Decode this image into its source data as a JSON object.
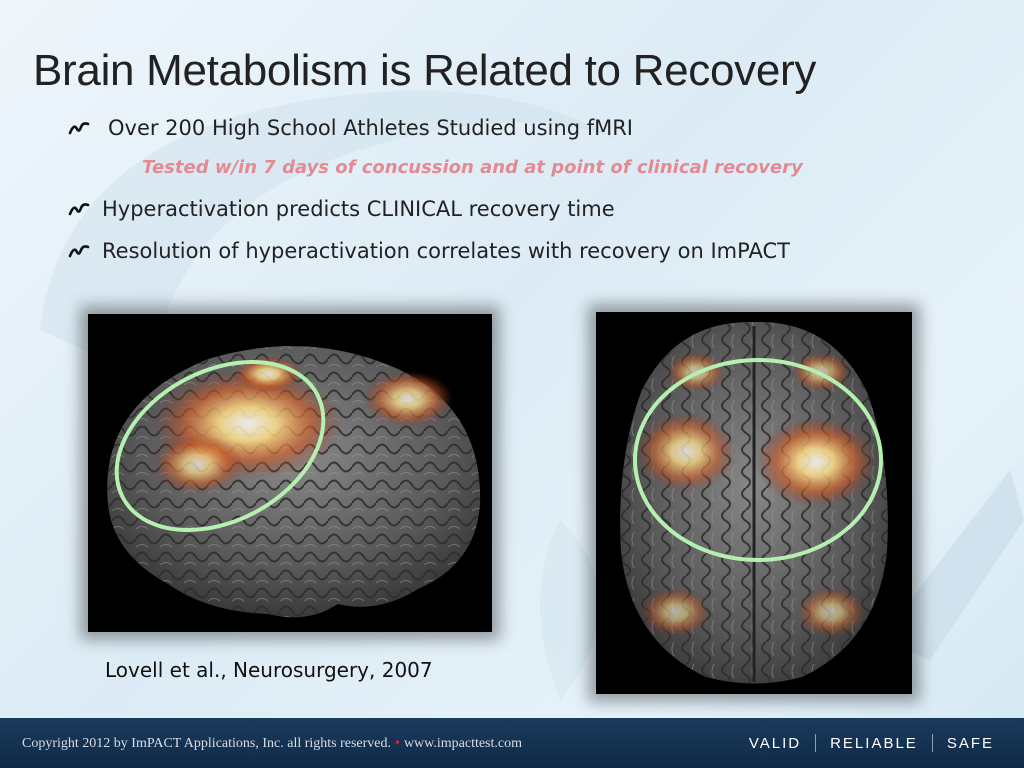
{
  "title": "Brain Metabolism is Related to Recovery",
  "bullets": [
    {
      "text": "Over 200 High School Athletes Studied using fMRI",
      "icon": "script-bullet-icon"
    },
    {
      "text": "Hyperactivation predicts CLINICAL recovery time",
      "icon": "script-bullet-icon"
    },
    {
      "text": "Resolution of hyperactivation correlates with recovery on ImPACT",
      "icon": "script-bullet-icon"
    }
  ],
  "sub_bullet": "Tested w/in 7 days of concussion and at point of clinical recovery",
  "citation": "Lovell et al., Neurosurgery, 2007",
  "images": {
    "left": {
      "icon": "brain-lateral-fmri-image"
    },
    "right": {
      "icon": "brain-top-fmri-image"
    }
  },
  "footer": {
    "copyright_prefix": "Copyright 2012 by ImPACT Applications, Inc. all rights reserved.",
    "bullet": "•",
    "url": "www.impacttest.com",
    "tags": [
      "VALID",
      "RELIABLE",
      "SAFE"
    ]
  },
  "colors": {
    "sub_bullet": "#e58a93",
    "footer_bg": "#13304f",
    "highlight_ring": "#b6f0b0",
    "footer_dot": "#d7262e"
  }
}
